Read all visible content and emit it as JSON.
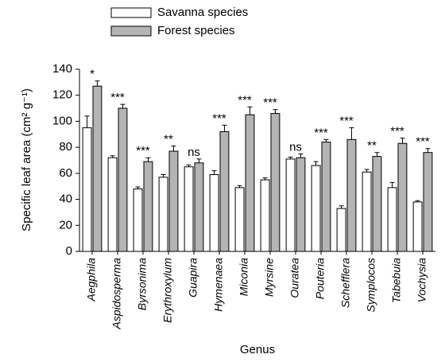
{
  "chart_data": {
    "type": "bar",
    "y_label": "Specific leaf area (cm² g⁻¹)",
    "x_label": "Genus",
    "categories": [
      "Aegphila",
      "Aspidosperma",
      "Byrsonima",
      "Erythroxylum",
      "Guapira",
      "Hymenaea",
      "Miconia",
      "Myrsine",
      "Ouratea",
      "Pouteria",
      "Schefflera",
      "Symplocos",
      "Tabebuia",
      "Vochysia"
    ],
    "series": [
      {
        "name": "Savanna species",
        "color": "#ffffff",
        "values": [
          95,
          72,
          48,
          57,
          65,
          59,
          49,
          55,
          71,
          66,
          33,
          61,
          49,
          38
        ],
        "errors": [
          9,
          1.5,
          1.5,
          2,
          1.5,
          3,
          1.5,
          1.5,
          1.5,
          3,
          2,
          2,
          4,
          1
        ]
      },
      {
        "name": "Forest species",
        "color": "#b4b4b4",
        "values": [
          127,
          110,
          69,
          77,
          68,
          92,
          105,
          106,
          72,
          84,
          86,
          73,
          83,
          76
        ],
        "errors": [
          4,
          3,
          3,
          4,
          3,
          5,
          6,
          3,
          3,
          2,
          9,
          3,
          4,
          3
        ]
      }
    ],
    "annotations": [
      "*",
      "***",
      "***",
      "**",
      "ns",
      "***",
      "***",
      "***",
      "ns",
      "***",
      "***",
      "**",
      "***",
      "***"
    ],
    "ylim": [
      0,
      140
    ],
    "yticks": [
      0,
      20,
      40,
      60,
      80,
      100,
      120,
      140
    ],
    "grid": false,
    "legend": "top-left"
  }
}
